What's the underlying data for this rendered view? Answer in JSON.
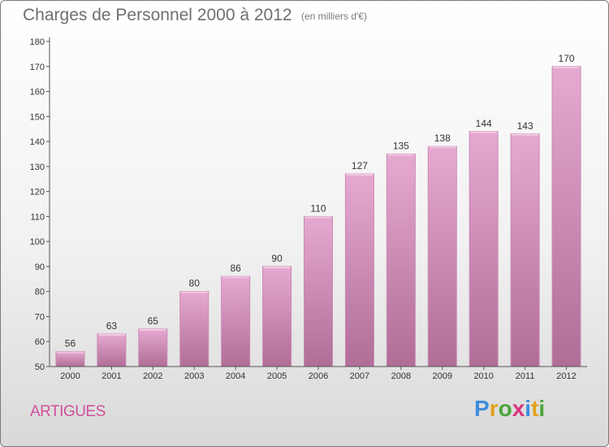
{
  "header": {
    "title": "Charges de Personnel 2000 à 2012",
    "subtitle": "(en milliers d'€)"
  },
  "footer": {
    "city": "ARTIGUES",
    "logo": [
      "P",
      "r",
      "o",
      "x",
      "i",
      "t",
      "i"
    ]
  },
  "colors": {
    "bar_top": "#e6a9d1",
    "bar_bottom": "#b06d97",
    "bar_side": "#c98ab3",
    "accent": "#d0509b",
    "axis": "#555555",
    "grid_tick": "#555555"
  },
  "chart_data": {
    "type": "bar",
    "title": "Charges de Personnel 2000 à 2012",
    "subtitle": "(en milliers d'€)",
    "categories": [
      "2000",
      "2001",
      "2002",
      "2003",
      "2004",
      "2005",
      "2006",
      "2007",
      "2008",
      "2009",
      "2010",
      "2011",
      "2012"
    ],
    "values": [
      56,
      63,
      65,
      80,
      86,
      90,
      110,
      127,
      135,
      138,
      144,
      143,
      170
    ],
    "ylim": [
      50,
      180
    ],
    "yticks": [
      50,
      60,
      70,
      80,
      90,
      100,
      110,
      120,
      130,
      140,
      150,
      160,
      170,
      180
    ],
    "grid": false,
    "data_labels": true
  }
}
